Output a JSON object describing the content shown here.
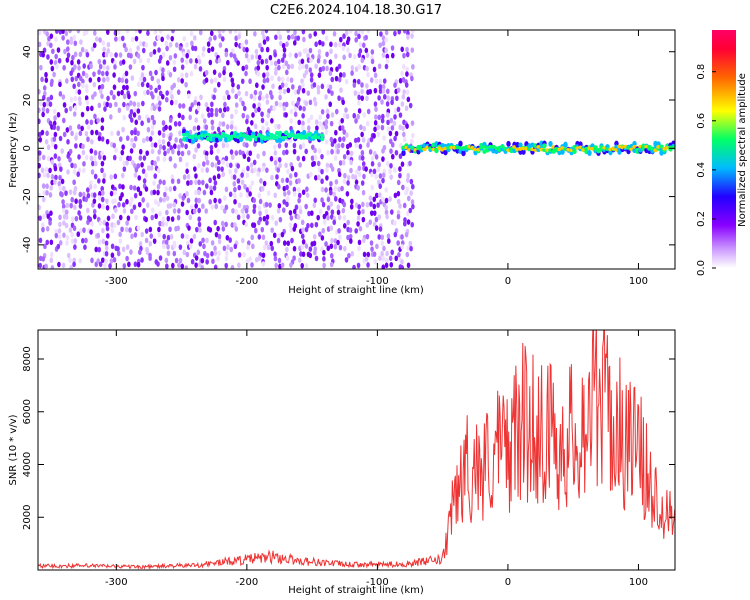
{
  "title": "C2E6.2024.104.18.30.G17",
  "colors": {
    "snr_line": "#ee3333",
    "colormap_stops": [
      "#ffffff",
      "#cc99ff",
      "#8800ff",
      "#2200ff",
      "#00bbff",
      "#00ff66",
      "#ffff00",
      "#ff6600",
      "#ff0033",
      "#ff0066"
    ]
  },
  "chart_data": [
    {
      "type": "heatmap",
      "xlabel": "Height of straight line (km)",
      "ylabel": "Frequency (Hz)",
      "xlim": [
        -360,
        128
      ],
      "ylim": [
        -50,
        49
      ],
      "xticks": [
        -300,
        -200,
        -100,
        0,
        100
      ],
      "xtick_labels": [
        "-300",
        "-200",
        "-100",
        "0",
        "100"
      ],
      "yticks": [
        -40,
        -20,
        0,
        20,
        40
      ],
      "ytick_labels": [
        "-40",
        "-20",
        "0",
        "20",
        "40"
      ],
      "colorbar": {
        "label": "Normalized spectral amplitude",
        "range": [
          0,
          0.97
        ],
        "ticks": [
          0.0,
          0.2,
          0.4,
          0.6,
          0.8
        ],
        "tick_labels": [
          "0.0",
          "0.2",
          "0.4",
          "0.6",
          "0.8"
        ]
      },
      "features": {
        "noise_region_x": [
          -360,
          -72
        ],
        "signal_band_1": {
          "x": [
            -248,
            -140
          ],
          "freq_hz": 5,
          "amplitude": 0.35
        },
        "signal_band_2": {
          "x": [
            -80,
            128
          ],
          "freq_hz": 0,
          "amplitude": 0.9
        }
      }
    },
    {
      "type": "line",
      "xlabel": "Height of straight line (km)",
      "ylabel": "SNR (10 * v/v)",
      "xlim": [
        -360,
        128
      ],
      "ylim": [
        0,
        9100
      ],
      "xticks": [
        -300,
        -200,
        -100,
        0,
        100
      ],
      "xtick_labels": [
        "-300",
        "-200",
        "-100",
        "0",
        "100"
      ],
      "yticks": [
        2000,
        4000,
        6000,
        8000
      ],
      "ytick_labels": [
        "2000",
        "4000",
        "6000",
        "8000"
      ],
      "series": [
        {
          "x": [
            -360,
            -320,
            -280,
            -240,
            -200,
            -180,
            -160,
            -120,
            -80,
            -50,
            -45,
            -40,
            -30,
            -20,
            -10,
            0,
            10,
            20,
            30,
            40,
            50,
            60,
            70,
            80,
            90,
            100,
            110,
            120,
            128
          ],
          "values": [
            150,
            160,
            120,
            180,
            400,
            500,
            350,
            200,
            220,
            400,
            1500,
            3000,
            4000,
            3800,
            4500,
            4600,
            5600,
            5400,
            5300,
            4800,
            5200,
            5700,
            7000,
            5500,
            5000,
            4600,
            3000,
            2500,
            2000
          ]
        }
      ]
    }
  ]
}
